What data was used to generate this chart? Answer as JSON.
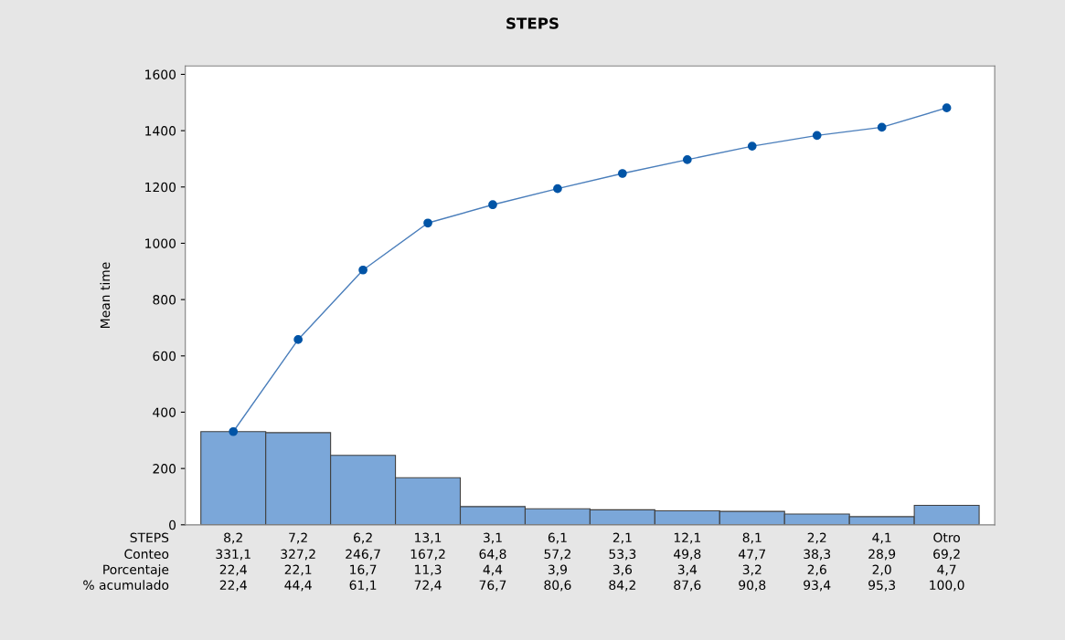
{
  "chart_data": {
    "type": "bar",
    "title": "STEPS",
    "xlabel": "STEPS",
    "ylabel": "Mean time",
    "categories": [
      "8,2",
      "7,2",
      "6,2",
      "13,1",
      "3,1",
      "6,1",
      "2,1",
      "12,1",
      "8,1",
      "2,2",
      "4,1",
      "Otro"
    ],
    "series": [
      {
        "color": "#7ba7d9",
        "values": [
          331.1,
          327.2,
          246.7,
          167.2,
          64.8,
          57.2,
          53.3,
          49.8,
          47.7,
          38.3,
          28.9,
          69.2
        ]
      },
      {
        "type": "line",
        "color": "#4a7ebb",
        "values": [
          331,
          658,
          905,
          1072,
          1137,
          1194,
          1248,
          1297,
          1345,
          1383,
          1412,
          1481
        ]
      }
    ],
    "annotations": [
      "Conteo",
      "331,1",
      "327,2",
      "246,7",
      "167,2",
      "64,8",
      "57,2",
      "53,3",
      "49,8",
      "47,7",
      "38,3",
      "28,9",
      "69,2",
      "Porcentaje",
      "22,4",
      "22,1",
      "16,7",
      "11,3",
      "4,4",
      "3,9",
      "3,6",
      "3,4",
      "3,2",
      "2,6",
      "2,0",
      "4,7",
      "% acumulado",
      "22,4",
      "44,4",
      "61,1",
      "72,4",
      "76,7",
      "80,6",
      "84,2",
      "87,6",
      "90,8",
      "93,4",
      "95,3",
      "100,0"
    ],
    "marker": "circle",
    "line_style": "solid",
    "ylim": [
      0,
      1630
    ],
    "yticks": [
      0,
      200,
      400,
      600,
      800,
      1000,
      1200,
      1400,
      1600
    ],
    "grid": false,
    "legend": false
  }
}
